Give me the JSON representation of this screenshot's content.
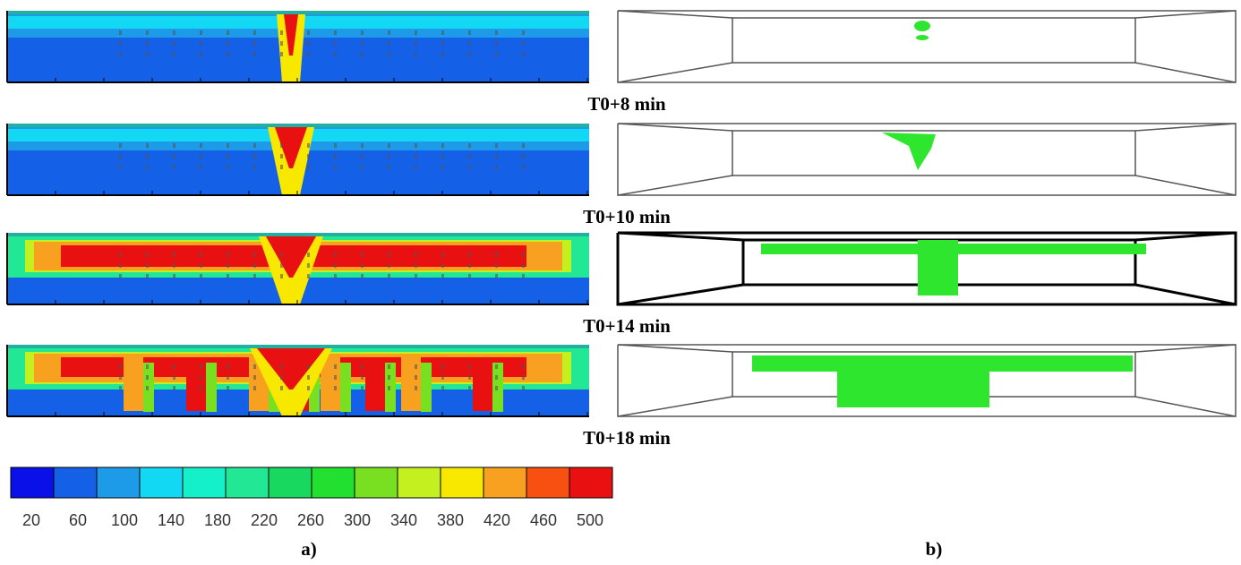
{
  "rows": [
    {
      "label": "T0+8 min"
    },
    {
      "label": "T0+10 min"
    },
    {
      "label": "T0+14 min"
    },
    {
      "label": "T0+18 min"
    }
  ],
  "colorbar": {
    "colors": [
      "#0a10e8",
      "#1460e6",
      "#1e9be8",
      "#12d8f4",
      "#14f0c8",
      "#22e896",
      "#18d860",
      "#22e030",
      "#78e020",
      "#c4f020",
      "#f8e800",
      "#f8a020",
      "#f85010",
      "#e81010"
    ],
    "ticks": [
      20,
      60,
      100,
      140,
      180,
      220,
      260,
      300,
      340,
      380,
      420,
      460,
      500
    ]
  },
  "panels": {
    "left": "a)",
    "right": "b)"
  }
}
